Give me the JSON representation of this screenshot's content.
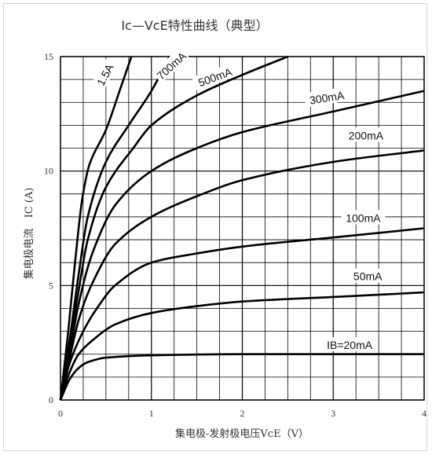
{
  "chart_data": {
    "type": "line",
    "title": "Ic—VcE特性曲线（典型）",
    "xlabel": "集电极-发射极电压VcE（V）",
    "ylabel": "集电极电流　IC (A)",
    "xlim": [
      0,
      4
    ],
    "ylim": [
      0,
      15
    ],
    "xticks": [
      "0",
      "1",
      "2",
      "3",
      "4"
    ],
    "yticks": [
      "0",
      "5",
      "10",
      "15"
    ],
    "grid": true,
    "series": [
      {
        "name": "IB=20mA",
        "x": [
          0,
          0.1,
          0.2,
          0.3,
          0.5,
          1,
          2,
          3,
          4
        ],
        "y": [
          0,
          0.9,
          1.4,
          1.65,
          1.85,
          1.95,
          2.0,
          2.0,
          2.0
        ]
      },
      {
        "name": "50mA",
        "x": [
          0,
          0.1,
          0.2,
          0.35,
          0.6,
          1,
          1.5,
          2,
          3,
          4
        ],
        "y": [
          0,
          1.2,
          2.0,
          2.6,
          3.3,
          3.8,
          4.1,
          4.3,
          4.5,
          4.7
        ]
      },
      {
        "name": "100mA",
        "x": [
          0,
          0.1,
          0.25,
          0.4,
          0.6,
          1,
          1.5,
          2,
          3,
          4
        ],
        "y": [
          0,
          1.6,
          3.0,
          4.0,
          5.0,
          6.0,
          6.4,
          6.7,
          7.1,
          7.5
        ]
      },
      {
        "name": "200mA",
        "x": [
          0,
          0.1,
          0.2,
          0.35,
          0.6,
          1,
          1.5,
          2,
          3,
          4
        ],
        "y": [
          0,
          1.8,
          3.5,
          5.1,
          6.8,
          8.0,
          8.9,
          9.6,
          10.4,
          10.9
        ]
      },
      {
        "name": "300mA",
        "x": [
          0,
          0.1,
          0.2,
          0.35,
          0.6,
          1,
          1.5,
          2,
          3,
          4
        ],
        "y": [
          0,
          2.0,
          4.2,
          6.4,
          8.5,
          10.0,
          11.0,
          11.7,
          12.6,
          13.5
        ]
      },
      {
        "name": "500mA",
        "x": [
          0,
          0.1,
          0.2,
          0.3,
          0.5,
          0.8,
          1,
          1.5,
          2,
          2.5
        ],
        "y": [
          0,
          2.4,
          4.8,
          7.0,
          9.3,
          11.0,
          12.0,
          13.3,
          14.2,
          15.0
        ]
      },
      {
        "name": "700mA",
        "x": [
          0,
          0.1,
          0.2,
          0.3,
          0.5,
          0.75,
          1,
          1.2
        ],
        "y": [
          0,
          2.6,
          5.5,
          8.0,
          10.4,
          12.0,
          13.5,
          15.0
        ]
      },
      {
        "name": "1.5A",
        "x": [
          0,
          0.08,
          0.16,
          0.24,
          0.32,
          0.5,
          0.65,
          0.78
        ],
        "y": [
          0,
          2.8,
          6.0,
          8.8,
          10.3,
          11.8,
          13.5,
          15.0
        ]
      }
    ]
  }
}
